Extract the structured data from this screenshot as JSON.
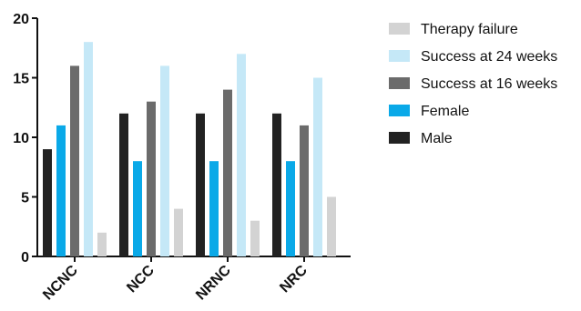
{
  "chart_data": {
    "type": "bar",
    "categories": [
      "NCNC",
      "NCC",
      "NRNC",
      "NRC"
    ],
    "ylim": [
      0,
      20
    ],
    "yticks": [
      0,
      5,
      10,
      15,
      20
    ],
    "grid": false,
    "legend_position": "right",
    "series": [
      {
        "name": "Male",
        "values": [
          9,
          12,
          12,
          12
        ],
        "color": "#222222"
      },
      {
        "name": "Female",
        "values": [
          11,
          8,
          8,
          8
        ],
        "color": "#0aa9e8"
      },
      {
        "name": "Success at 16 weeks",
        "values": [
          16,
          13,
          14,
          11
        ],
        "color": "#6b6b6b"
      },
      {
        "name": "Success at 24 weeks",
        "values": [
          18,
          16,
          17,
          15
        ],
        "color": "#c5e8f7"
      },
      {
        "name": "Therapy failure",
        "values": [
          2,
          4,
          3,
          5
        ],
        "color": "#d3d3d3"
      }
    ],
    "legend_order": [
      "Therapy failure",
      "Success at 24 weeks",
      "Success at 16 weeks",
      "Female",
      "Male"
    ],
    "title": "",
    "xlabel": "",
    "ylabel": ""
  }
}
